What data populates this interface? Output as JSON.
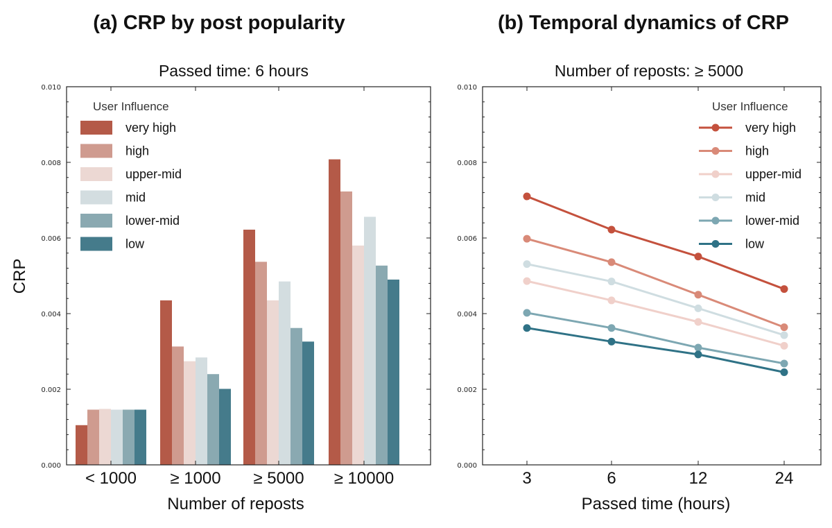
{
  "chart_data": [
    {
      "type": "bar",
      "title": "(a) CRP by post popularity",
      "subtitle": "Passed time: 6 hours",
      "xlabel": "Number of reposts",
      "ylabel": "CRP",
      "ylim": [
        0,
        0.01
      ],
      "yticks": [
        "0.000",
        "0.002",
        "0.004",
        "0.006",
        "0.008",
        "0.010"
      ],
      "categories": [
        "< 1000",
        "≥ 1000",
        "≥ 5000",
        "≥ 10000"
      ],
      "legend_title": "User Influence",
      "legend_position": "top-left",
      "series": [
        {
          "name": "very high",
          "color": "#b45a48",
          "values": [
            0.00105,
            0.00435,
            0.00622,
            0.00808
          ]
        },
        {
          "name": "high",
          "color": "#cf9b8f",
          "values": [
            0.00146,
            0.00313,
            0.00537,
            0.00723
          ]
        },
        {
          "name": "upper-mid",
          "color": "#ecd8d3",
          "values": [
            0.00148,
            0.00274,
            0.00435,
            0.0058
          ]
        },
        {
          "name": "mid",
          "color": "#d3dde0",
          "values": [
            0.00146,
            0.00284,
            0.00485,
            0.00656
          ]
        },
        {
          "name": "lower-mid",
          "color": "#8aa9b1",
          "values": [
            0.00146,
            0.0024,
            0.00362,
            0.00527
          ]
        },
        {
          "name": "low",
          "color": "#457b8b",
          "values": [
            0.00146,
            0.00201,
            0.00326,
            0.0049
          ]
        }
      ]
    },
    {
      "type": "line",
      "title": "(b) Temporal dynamics of CRP",
      "subtitle": "Number of reposts: ≥ 5000",
      "xlabel": "Passed time (hours)",
      "ylabel": "",
      "ylim": [
        0,
        0.01
      ],
      "yticks": [
        "0.000",
        "0.002",
        "0.004",
        "0.006",
        "0.008",
        "0.010"
      ],
      "x": [
        "3",
        "6",
        "12",
        "24"
      ],
      "legend_title": "User Influence",
      "legend_position": "top-right",
      "series": [
        {
          "name": "very high",
          "color": "#c4513d",
          "values": [
            0.0071,
            0.00622,
            0.00551,
            0.00465
          ]
        },
        {
          "name": "high",
          "color": "#d98a78",
          "values": [
            0.00598,
            0.00536,
            0.0045,
            0.00364
          ]
        },
        {
          "name": "upper-mid",
          "color": "#f0d0ca",
          "values": [
            0.00486,
            0.00435,
            0.00378,
            0.00315
          ]
        },
        {
          "name": "mid",
          "color": "#cfdde1",
          "values": [
            0.00531,
            0.00485,
            0.00414,
            0.00343
          ]
        },
        {
          "name": "lower-mid",
          "color": "#7da7b2",
          "values": [
            0.00402,
            0.00362,
            0.0031,
            0.00268
          ]
        },
        {
          "name": "low",
          "color": "#2f7286",
          "values": [
            0.00362,
            0.00326,
            0.00292,
            0.00245
          ]
        }
      ]
    }
  ]
}
